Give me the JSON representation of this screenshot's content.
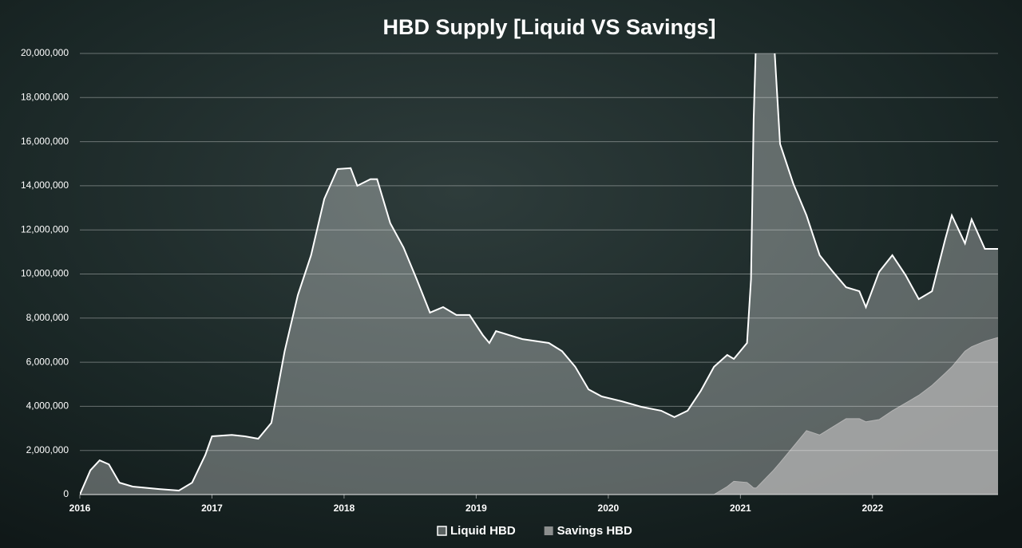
{
  "chart_data": {
    "type": "area",
    "title": "HBD Supply [Liquid VS Savings]",
    "x": [
      2016.0,
      2016.08,
      2016.15,
      2016.22,
      2016.3,
      2016.4,
      2016.6,
      2016.75,
      2016.85,
      2016.95,
      2017.0,
      2017.15,
      2017.25,
      2017.35,
      2017.45,
      2017.55,
      2017.65,
      2017.75,
      2017.85,
      2017.95,
      2018.05,
      2018.1,
      2018.2,
      2018.25,
      2018.35,
      2018.45,
      2018.55,
      2018.65,
      2018.75,
      2018.85,
      2018.95,
      2019.05,
      2019.1,
      2019.15,
      2019.35,
      2019.55,
      2019.65,
      2019.75,
      2019.85,
      2019.95,
      2020.1,
      2020.25,
      2020.4,
      2020.5,
      2020.6,
      2020.7,
      2020.8,
      2020.9,
      2020.95,
      2021.05,
      2021.08,
      2021.1,
      2021.12,
      2021.25,
      2021.3,
      2021.4,
      2021.5,
      2021.6,
      2021.7,
      2021.8,
      2021.9,
      2021.95,
      2022.05,
      2022.15,
      2022.25,
      2022.35,
      2022.45,
      2022.55,
      2022.6,
      2022.7,
      2022.75,
      2022.85,
      2022.95
    ],
    "series": [
      {
        "name": "Liquid HBD",
        "color": "#ffffff",
        "values": [
          0,
          1100000,
          1550000,
          1370000,
          540000,
          360000,
          250000,
          180000,
          540000,
          1800000,
          2640000,
          2700000,
          2640000,
          2530000,
          3250000,
          6500000,
          9040000,
          10850000,
          13400000,
          14760000,
          14800000,
          14000000,
          14300000,
          14300000,
          12300000,
          11200000,
          9760000,
          8250000,
          8500000,
          8140000,
          8140000,
          7230000,
          6870000,
          7410000,
          7050000,
          6870000,
          6500000,
          5790000,
          4770000,
          4450000,
          4230000,
          3980000,
          3800000,
          3510000,
          3800000,
          4700000,
          5790000,
          6330000,
          6150000,
          6870000,
          9760000,
          17000000,
          21000000,
          21000000,
          15900000,
          14100000,
          12660000,
          10850000,
          10100000,
          9400000,
          9220000,
          8500000,
          10100000,
          10850000,
          9950000,
          8860000,
          9220000,
          11570000,
          12660000,
          11390000,
          12480000,
          11140000,
          11140000
        ]
      },
      {
        "name": "Savings HBD",
        "color": "#b4b4b4",
        "values": [
          0,
          0,
          0,
          0,
          0,
          0,
          0,
          0,
          0,
          0,
          0,
          0,
          0,
          0,
          0,
          0,
          0,
          0,
          0,
          0,
          0,
          0,
          0,
          0,
          0,
          0,
          0,
          0,
          0,
          0,
          0,
          0,
          0,
          0,
          0,
          0,
          0,
          0,
          0,
          0,
          0,
          0,
          0,
          0,
          0,
          0,
          0,
          360000,
          600000,
          550000,
          400000,
          300000,
          300000,
          1100000,
          1450000,
          2170000,
          2900000,
          2700000,
          3070000,
          3440000,
          3440000,
          3300000,
          3400000,
          3800000,
          4150000,
          4500000,
          4950000,
          5500000,
          5790000,
          6500000,
          6700000,
          6950000,
          7120000
        ]
      }
    ],
    "xlim": [
      2016,
      2022.95
    ],
    "xticks": [
      2016,
      2017,
      2018,
      2019,
      2020,
      2021,
      2022
    ],
    "ylim": [
      0,
      20000000
    ],
    "yticks": [
      0,
      {
        "value": 2000000,
        "label": "2,000,000"
      },
      {
        "value": 4000000,
        "label": "4,000,000"
      },
      {
        "value": 6000000,
        "label": "6,000,000"
      },
      {
        "value": 8000000,
        "label": "8,000,000"
      },
      {
        "value": 10000000,
        "label": "10,000,000"
      },
      {
        "value": 12000000,
        "label": "12,000,000"
      },
      {
        "value": 14000000,
        "label": "14,000,000"
      },
      {
        "value": 16000000,
        "label": "16,000,000"
      },
      {
        "value": 18000000,
        "label": "18,000,000"
      },
      {
        "value": 20000000,
        "label": "20,000,000"
      }
    ],
    "grid": true,
    "legend": "bottom"
  }
}
